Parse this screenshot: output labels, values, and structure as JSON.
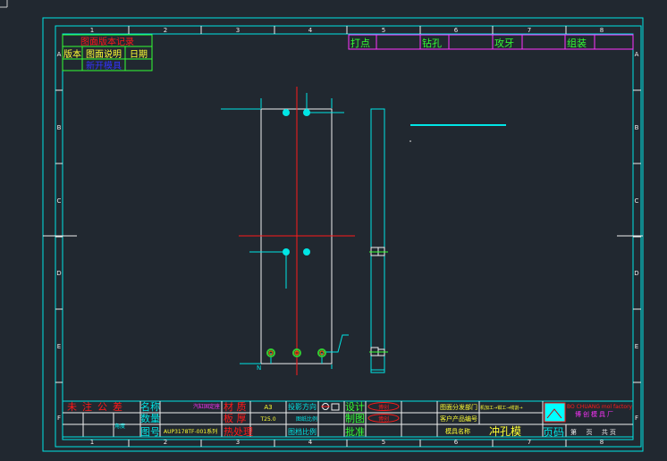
{
  "colors": {
    "background": "#212830",
    "frame": "#00e5e5",
    "red": "#ff1a1a",
    "yellow": "#ffff33",
    "green": "#33ff33",
    "magenta": "#ff33ff",
    "blue": "#3333ff",
    "white": "#f0f0f0"
  },
  "zones": {
    "columns": [
      "1",
      "2",
      "3",
      "4",
      "5",
      "6",
      "7",
      "8"
    ],
    "rows": [
      "A",
      "B",
      "C",
      "D",
      "E",
      "F"
    ]
  },
  "revision_table": {
    "title": "图面版本记录",
    "headers": [
      "版本",
      "图面说明",
      "日期"
    ],
    "row": {
      "version": "",
      "description": "新开模具",
      "date": ""
    }
  },
  "process_table": {
    "steps": [
      "打点",
      "钻孔",
      "攻牙",
      "组装"
    ]
  },
  "title_block": {
    "tolerance": "未注公差",
    "angle": "角度",
    "name_label": "名称",
    "qty_label": "数量",
    "drawing_no_label": "图号",
    "part_name": "汽缸固定座",
    "drawing_no": "AUP3178TF-001系列",
    "material_label": "材 质",
    "thickness_label": "板 厚",
    "heat_label": "热处理",
    "material": "A3",
    "thickness": "T25.0",
    "projection_label": "投影方向",
    "paper_scale_label": "图纸比例",
    "file_scale_label": "图档比例",
    "design_label": "设计",
    "drafting_label": "制图",
    "approve_label": "批准",
    "stamp": "博创",
    "dept_label": "图面分发部门",
    "dept_value": "机加工→钳工→线割→",
    "customer_no_label": "客户产品编号",
    "mold_name_label": "模具名称",
    "mold_name": "冲孔模",
    "company_en": "BO CHUANG mol factory",
    "company_cn": "博创模具厂",
    "page_label": "页码",
    "page_text": "第  页  共页"
  },
  "drawing": {
    "dim_mark": "N"
  }
}
